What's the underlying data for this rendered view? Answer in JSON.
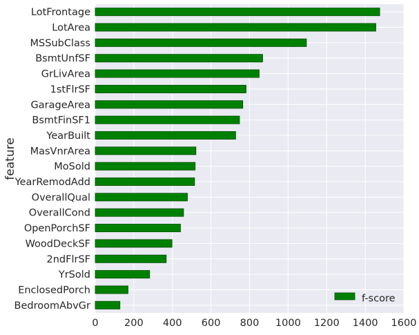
{
  "chart_data": {
    "type": "bar",
    "orientation": "horizontal",
    "title": "",
    "xlabel": "",
    "ylabel": "feature",
    "xlim": [
      0,
      1600
    ],
    "xticks": [
      0,
      200,
      400,
      600,
      800,
      1000,
      1200,
      1400,
      1600
    ],
    "grid": true,
    "legend_position": "lower-right",
    "colors": {
      "bar": "#008000",
      "bar_edge": "#004d00",
      "axes_bg": "#EAEAF2",
      "grid": "#ffffff"
    },
    "categories": [
      "LotFrontage",
      "LotArea",
      "MSSubClass",
      "BsmtUnfSF",
      "GrLivArea",
      "1stFlrSF",
      "GarageArea",
      "BsmtFinSF1",
      "YearBuilt",
      "MasVnrArea",
      "MoSold",
      "YearRemodAdd",
      "OverallQual",
      "OverallCond",
      "OpenPorchSF",
      "WoodDeckSF",
      "2ndFlrSF",
      "YrSold",
      "EnclosedPorch",
      "BedroomAbvGr"
    ],
    "series": [
      {
        "name": "f-score",
        "values": [
          1475,
          1455,
          1095,
          868,
          850,
          782,
          765,
          748,
          728,
          522,
          518,
          515,
          478,
          458,
          442,
          398,
          368,
          282,
          170,
          128
        ]
      }
    ]
  }
}
